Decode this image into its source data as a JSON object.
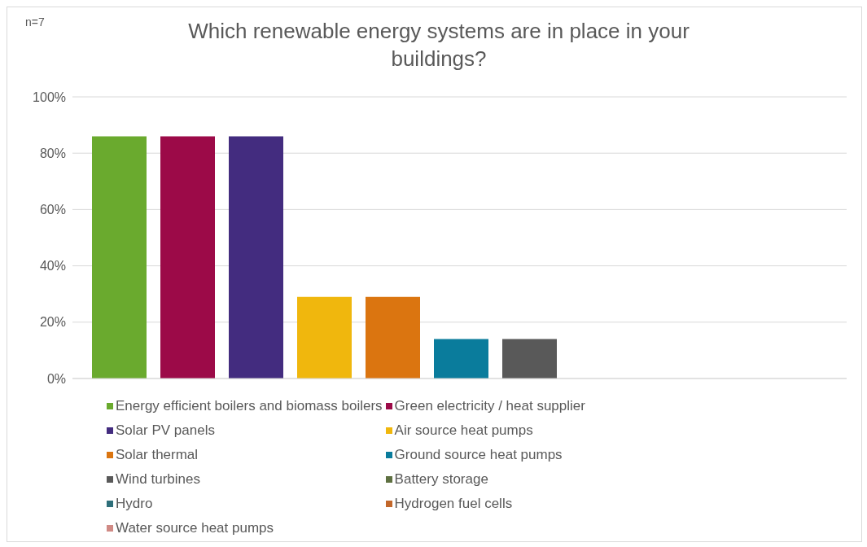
{
  "chart_data": {
    "type": "bar",
    "title": "Which renewable energy systems are in place in your buildings?",
    "annotations": [
      "n=7"
    ],
    "categories": [
      null
    ],
    "series": [
      {
        "name": "Energy efficient boilers and biomass boilers",
        "color": "#6aaa2e",
        "values": [
          86
        ]
      },
      {
        "name": "Green electricity / heat supplier",
        "color": "#9c0a48",
        "values": [
          86
        ]
      },
      {
        "name": "Solar PV panels",
        "color": "#432c7f",
        "values": [
          86
        ]
      },
      {
        "name": "Air source heat pumps",
        "color": "#f0b70d",
        "values": [
          29
        ]
      },
      {
        "name": "Solar thermal",
        "color": "#db7510",
        "values": [
          29
        ]
      },
      {
        "name": "Ground source heat pumps",
        "color": "#0a7c9c",
        "values": [
          14
        ]
      },
      {
        "name": "Wind turbines",
        "color": "#595959",
        "values": [
          14
        ]
      },
      {
        "name": "Battery storage",
        "color": "#5e7041",
        "values": [
          0
        ]
      },
      {
        "name": "Hydro",
        "color": "#2e6f7a",
        "values": [
          0
        ]
      },
      {
        "name": "Hydrogen fuel cells",
        "color": "#c2672a",
        "values": [
          0
        ]
      },
      {
        "name": "Water source heat pumps",
        "color": "#d08a85",
        "values": [
          0
        ]
      }
    ],
    "ylim": [
      0,
      100
    ],
    "yticks": [
      {
        "value": 0,
        "label": "0%"
      },
      {
        "value": 20,
        "label": "20%"
      },
      {
        "value": 40,
        "label": "40%"
      },
      {
        "value": 60,
        "label": "60%"
      },
      {
        "value": 80,
        "label": "80%"
      },
      {
        "value": 100,
        "label": "100%"
      }
    ],
    "grid": "y",
    "legend": "bottom"
  }
}
